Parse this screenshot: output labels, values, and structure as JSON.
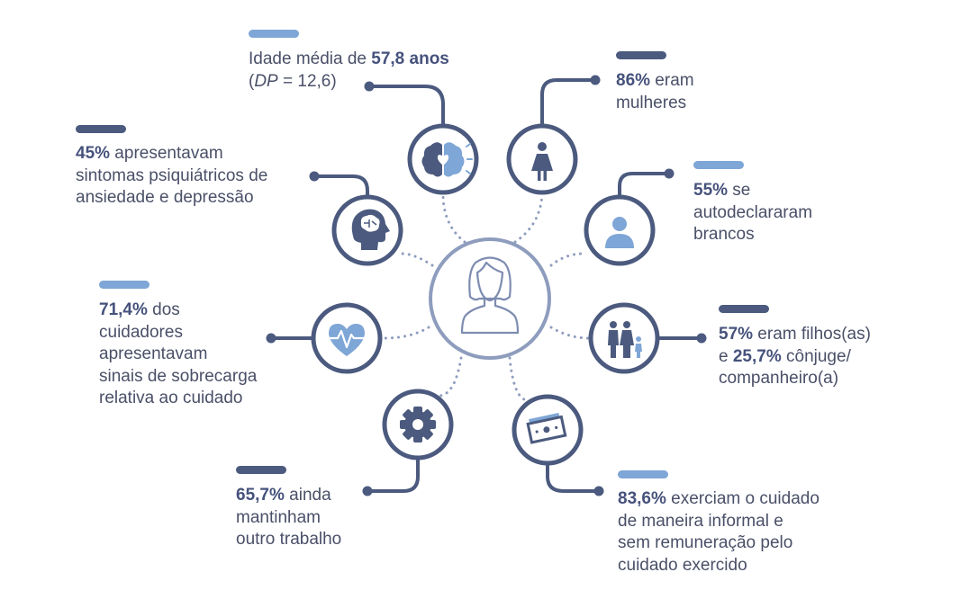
{
  "colors": {
    "dark": "#4b5a7e",
    "light": "#7ea6d6",
    "center_ring": "#8e9dbd",
    "icon_ring": "#4b5a7e",
    "text": "#4a5068",
    "bold_text": "#46527c"
  },
  "center": {
    "icon": "woman-avatar-icon"
  },
  "items": {
    "age": {
      "bar_color": "light",
      "icon": "brain-heart-icon",
      "line1_prefix": "Idade média de ",
      "line1_bold": "57,8 anos",
      "line2_open": "(",
      "line2_italic": "DP",
      "line2_rest": " = 12,6)"
    },
    "women": {
      "bar_color": "dark",
      "icon": "woman-icon",
      "bold": "86%",
      "text1": " eram",
      "line2": "mulheres"
    },
    "white": {
      "bar_color": "light",
      "icon": "person-icon",
      "bold": "55%",
      "text1": " se",
      "line2": "autodeclararam",
      "line3": "brancos"
    },
    "psych": {
      "bar_color": "dark",
      "icon": "head-brain-icon",
      "bold": "45%",
      "text1": " apresentavam",
      "line2": "sintomas psiquiátricos de",
      "line3": "ansiedade e depressão"
    },
    "burden": {
      "bar_color": "light",
      "icon": "heart-pulse-icon",
      "bold": "71,4%",
      "text1": " dos",
      "line2": "cuidadores",
      "line3": "apresentavam",
      "line4": "sinais de sobrecarga",
      "line5": "relativa ao cuidado"
    },
    "family": {
      "bar_color": "dark",
      "icon": "family-icon",
      "bold1": "57%",
      "text1": " eram filhos(as)",
      "line2_prefix": "e ",
      "bold2": "25,7%",
      "line2_rest": " cônjuge/",
      "line3": "companheiro(a)"
    },
    "work": {
      "bar_color": "dark",
      "icon": "gear-icon",
      "bold": "65,7%",
      "text1": " ainda",
      "line2": "mantinham",
      "line3": "outro trabalho"
    },
    "informal": {
      "bar_color": "light",
      "icon": "money-icon",
      "bold": "83,6%",
      "text1": " exerciam o cuidado",
      "line2": "de maneira informal e",
      "line3": "sem remuneração pelo",
      "line4": "cuidado exercido"
    }
  }
}
